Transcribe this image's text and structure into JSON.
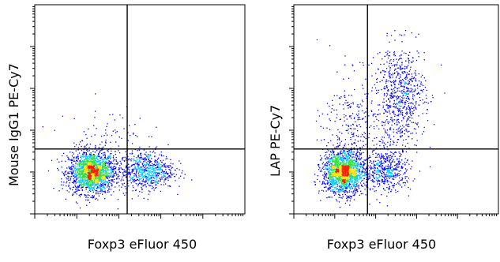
{
  "chart_data": [
    {
      "type": "scatter",
      "title": "",
      "xlabel": "Foxp3 eFluor 450",
      "ylabel": "Mouse IgG1 PE-Cy7",
      "axis_scale": "log",
      "xlim": [
        0,
        1
      ],
      "ylim": [
        0,
        1
      ],
      "quadrant_gate": {
        "x": 0.44,
        "y": 0.31
      },
      "populations": [
        {
          "name": "",
          "x": 0.27,
          "y": 0.2,
          "sx": 0.055,
          "sy": 0.05,
          "n": 1800
        },
        {
          "name": "",
          "x": 0.53,
          "y": 0.21,
          "sx": 0.065,
          "sy": 0.045,
          "n": 700
        },
        {
          "name": "",
          "x": 0.33,
          "y": 0.33,
          "sx": 0.1,
          "sy": 0.1,
          "n": 120
        }
      ]
    },
    {
      "type": "scatter",
      "title": "",
      "xlabel": "Foxp3 eFluor 450",
      "ylabel": "LAP PE-Cy7",
      "axis_scale": "log",
      "xlim": [
        0,
        1
      ],
      "ylim": [
        0,
        1
      ],
      "quadrant_gate": {
        "x": 0.36,
        "y": 0.31
      },
      "populations": [
        {
          "name": "",
          "x": 0.24,
          "y": 0.2,
          "sx": 0.05,
          "sy": 0.05,
          "n": 1700
        },
        {
          "name": "",
          "x": 0.45,
          "y": 0.21,
          "sx": 0.06,
          "sy": 0.05,
          "n": 500
        },
        {
          "name": "",
          "x": 0.52,
          "y": 0.57,
          "sx": 0.06,
          "sy": 0.12,
          "n": 700
        },
        {
          "name": "",
          "x": 0.3,
          "y": 0.42,
          "sx": 0.08,
          "sy": 0.13,
          "n": 300
        }
      ]
    }
  ],
  "colors": {
    "low": "#0000ff",
    "mid_low": "#00c8ff",
    "mid": "#30e040",
    "mid_high": "#ffe000",
    "high": "#ff2000",
    "frame": "#000000"
  }
}
